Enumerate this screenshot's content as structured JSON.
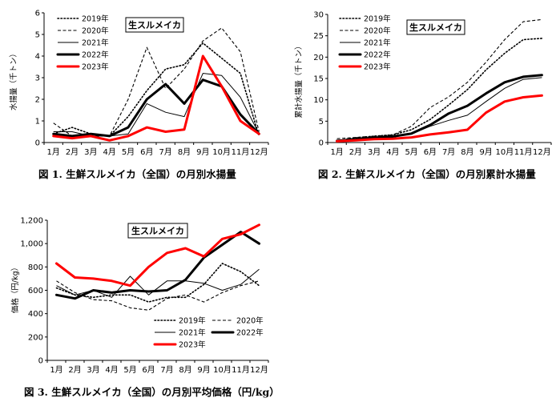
{
  "chart_data": [
    {
      "type": "line",
      "title": "生スルメイカ",
      "ylabel": "水揚量（千トン）",
      "caption": "図 1. 生鮮スルメイカ（全国）の月別水揚量",
      "categories": [
        "1月",
        "2月",
        "3月",
        "4月",
        "5月",
        "6月",
        "7月",
        "8月",
        "9月",
        "10月",
        "11月",
        "12月"
      ],
      "ylim": [
        0,
        6
      ],
      "yticks": [
        "0",
        "1",
        "2",
        "3",
        "4",
        "5",
        "6"
      ],
      "legend_position": "top-left",
      "series": [
        {
          "name": "2019年",
          "style": "dotted",
          "color": "#000000",
          "values": [
            0.4,
            0.7,
            0.4,
            0.3,
            1.2,
            2.4,
            3.4,
            3.6,
            4.6,
            3.9,
            3.2,
            0.3
          ]
        },
        {
          "name": "2020年",
          "style": "dashed",
          "color": "#000000",
          "values": [
            0.9,
            0.3,
            0.3,
            0.3,
            2.0,
            4.4,
            2.5,
            3.4,
            4.7,
            5.3,
            4.2,
            0.5
          ]
        },
        {
          "name": "2021年",
          "style": "thin",
          "color": "#000000",
          "values": [
            0.5,
            0.5,
            0.3,
            0.3,
            0.4,
            1.8,
            1.4,
            1.2,
            3.2,
            3.1,
            2.1,
            0.4
          ]
        },
        {
          "name": "2022年",
          "style": "thick",
          "color": "#000000",
          "values": [
            0.4,
            0.3,
            0.4,
            0.3,
            0.7,
            2.0,
            2.7,
            1.8,
            2.9,
            2.6,
            1.3,
            0.4
          ]
        },
        {
          "name": "2023年",
          "style": "thick",
          "color": "#ff0000",
          "values": [
            0.3,
            0.2,
            0.3,
            0.1,
            0.3,
            0.7,
            0.5,
            0.6,
            4.0,
            2.6,
            1.0,
            0.4
          ]
        }
      ]
    },
    {
      "type": "line",
      "title": "生スルメイカ",
      "ylabel": "累計水揚量（千トン）",
      "caption": "図 2. 生鮮スルメイカ（全国）の月別累計水揚量",
      "categories": [
        "1月",
        "2月",
        "3月",
        "4月",
        "5月",
        "6月",
        "7月",
        "8月",
        "9月",
        "10月",
        "11月",
        "12月"
      ],
      "ylim": [
        0,
        30
      ],
      "yticks": [
        "0",
        "5",
        "10",
        "15",
        "20",
        "25",
        "30"
      ],
      "legend_position": "top-left",
      "series": [
        {
          "name": "2019年",
          "style": "dotted",
          "color": "#000000",
          "values": [
            0.4,
            1.1,
            1.5,
            1.8,
            3.0,
            5.4,
            8.8,
            12.4,
            17.0,
            20.9,
            24.1,
            24.4
          ]
        },
        {
          "name": "2020年",
          "style": "dashed",
          "color": "#000000",
          "values": [
            0.9,
            1.2,
            1.5,
            1.8,
            3.8,
            8.2,
            10.7,
            14.1,
            18.8,
            24.1,
            28.3,
            28.8
          ]
        },
        {
          "name": "2021年",
          "style": "thin",
          "color": "#000000",
          "values": [
            0.5,
            1.0,
            1.3,
            1.6,
            2.0,
            3.8,
            5.2,
            6.4,
            9.6,
            12.7,
            14.8,
            15.2
          ]
        },
        {
          "name": "2022年",
          "style": "thick",
          "color": "#000000",
          "values": [
            0.4,
            0.7,
            1.1,
            1.4,
            2.1,
            4.1,
            6.8,
            8.6,
            11.5,
            14.1,
            15.4,
            15.8
          ]
        },
        {
          "name": "2023年",
          "style": "thick",
          "color": "#ff0000",
          "values": [
            0.3,
            0.5,
            0.8,
            0.9,
            1.2,
            1.9,
            2.4,
            3.0,
            7.0,
            9.6,
            10.6,
            11.0
          ]
        }
      ]
    },
    {
      "type": "line",
      "title": "生スルメイカ",
      "ylabel": "価格（円/kg）",
      "caption": "図 3. 生鮮スルメイカ（全国）の月別平均価格（円/kg）",
      "categories": [
        "1月",
        "2月",
        "3月",
        "4月",
        "5月",
        "6月",
        "7月",
        "8月",
        "9月",
        "10月",
        "11月",
        "12月"
      ],
      "ylim": [
        0,
        1200
      ],
      "yticks": [
        "0",
        "200",
        "400",
        "600",
        "800",
        "1,000",
        "1,200"
      ],
      "legend_position": "bottom-center",
      "series": [
        {
          "name": "2019年",
          "style": "dotted",
          "color": "#000000",
          "values": [
            620,
            560,
            540,
            560,
            560,
            500,
            540,
            540,
            650,
            830,
            760,
            640
          ]
        },
        {
          "name": "2020年",
          "style": "dashed",
          "color": "#000000",
          "values": [
            680,
            580,
            520,
            510,
            450,
            430,
            530,
            560,
            500,
            580,
            640,
            680
          ]
        },
        {
          "name": "2021年",
          "style": "thin",
          "color": "#000000",
          "values": [
            640,
            560,
            600,
            540,
            720,
            560,
            680,
            680,
            660,
            600,
            650,
            780
          ]
        },
        {
          "name": "2022年",
          "style": "thick",
          "color": "#000000",
          "values": [
            560,
            530,
            600,
            580,
            600,
            590,
            600,
            690,
            880,
            990,
            1100,
            1000
          ]
        },
        {
          "name": "2023年",
          "style": "thick",
          "color": "#ff0000",
          "values": [
            830,
            710,
            700,
            680,
            640,
            800,
            920,
            960,
            890,
            1040,
            1080,
            1160
          ]
        }
      ]
    }
  ]
}
